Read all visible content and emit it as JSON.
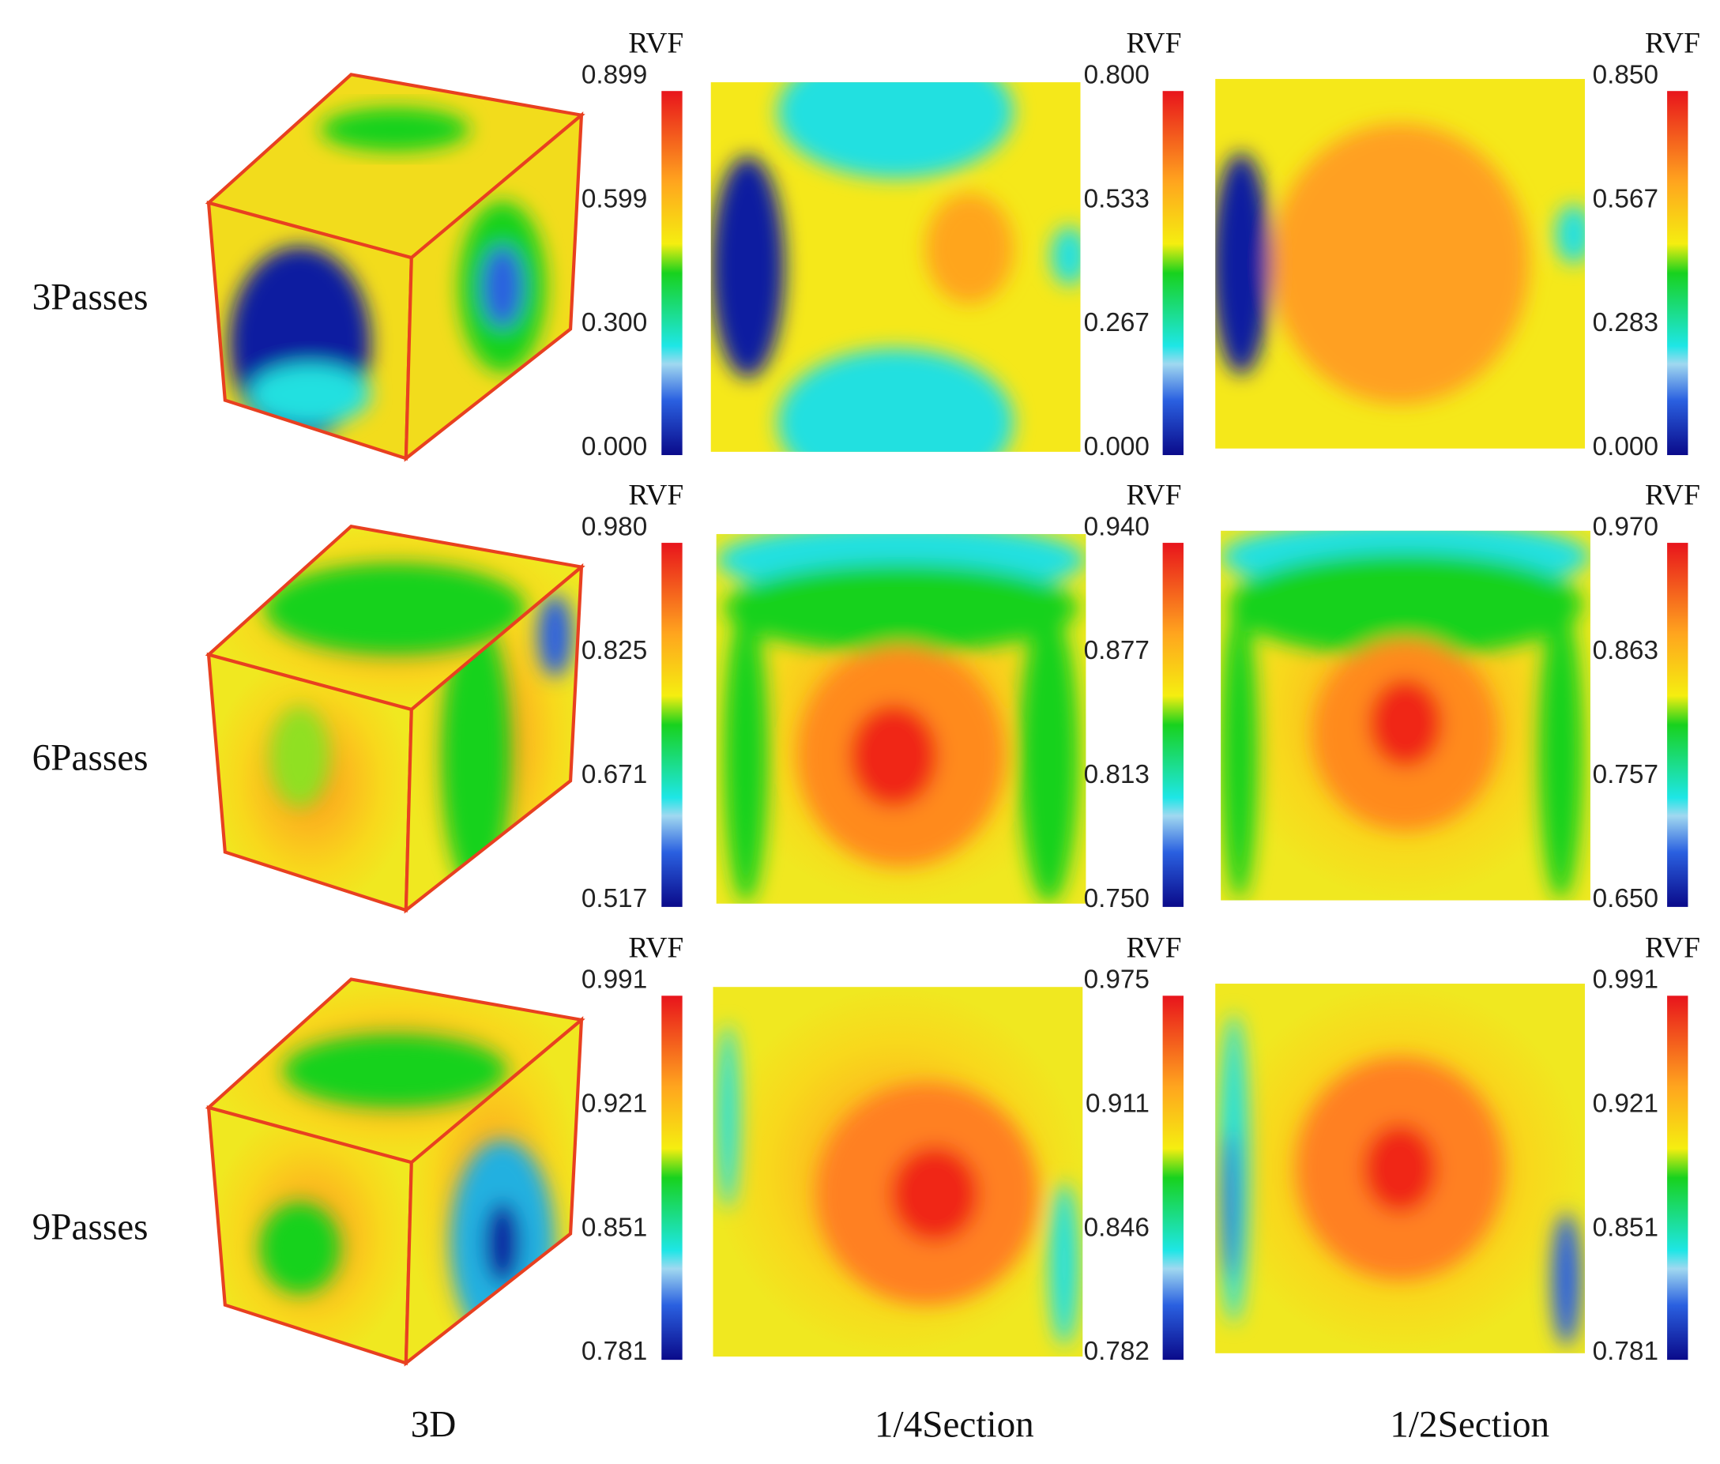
{
  "row_labels": [
    "3Passes",
    "6Passes",
    "9Passes"
  ],
  "column_labels": [
    "3D",
    "1/4Section",
    "1/2Section"
  ],
  "panels": [
    [
      {
        "colorbar_title": "RVF",
        "ticks": [
          "0.899",
          "0.599",
          "0.300",
          "0.000"
        ]
      },
      {
        "colorbar_title": "RVF",
        "ticks": [
          "0.800",
          "0.533",
          "0.267",
          "0.000"
        ]
      },
      {
        "colorbar_title": "RVF",
        "ticks": [
          "0.850",
          "0.567",
          "0.283",
          "0.000"
        ]
      }
    ],
    [
      {
        "colorbar_title": "RVF",
        "ticks": [
          "0.980",
          "0.825",
          "0.671",
          "0.517"
        ]
      },
      {
        "colorbar_title": "RVF",
        "ticks": [
          "0.940",
          "0.877",
          "0.813",
          "0.750"
        ]
      },
      {
        "colorbar_title": "RVF",
        "ticks": [
          "0.970",
          "0.863",
          "0.757",
          "0.650"
        ]
      }
    ],
    [
      {
        "colorbar_title": "RVF",
        "ticks": [
          "0.991",
          "0.921",
          "0.851",
          "0.781"
        ]
      },
      {
        "colorbar_title": "RVF",
        "ticks": [
          "0.975",
          "0.911",
          "0.846",
          "0.782"
        ]
      },
      {
        "colorbar_title": "RVF",
        "ticks": [
          "0.991",
          "0.921",
          "0.851",
          "0.781"
        ]
      }
    ]
  ]
}
